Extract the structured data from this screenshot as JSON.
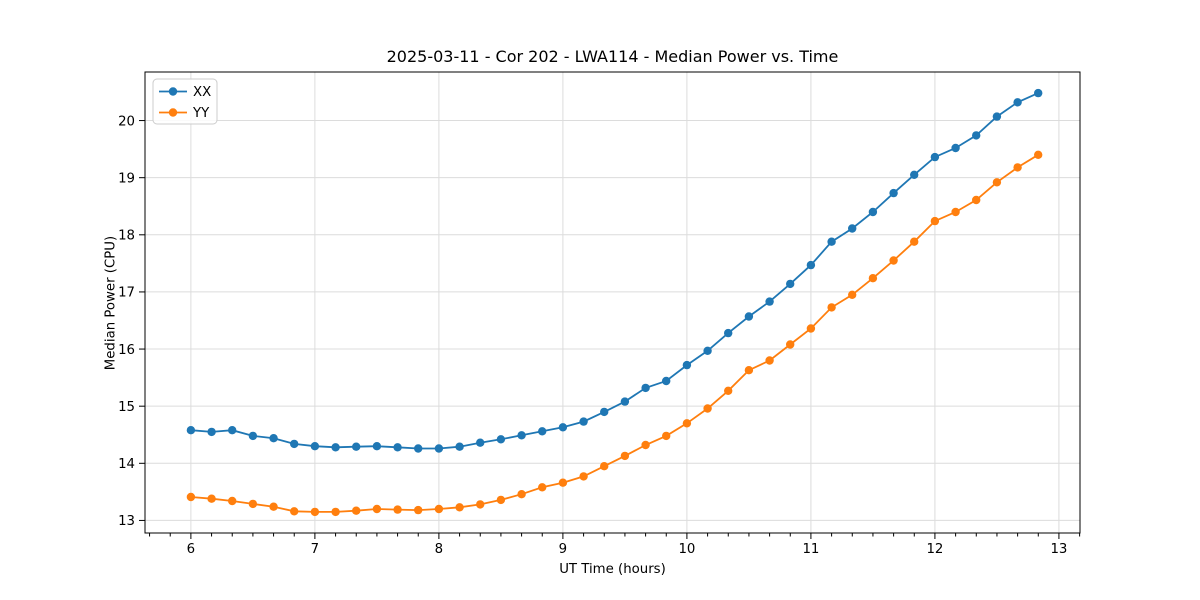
{
  "chart_data": {
    "type": "line",
    "title": "2025-03-11 - Cor 202 - LWA114 - Median Power vs. Time",
    "xlabel": "UT Time (hours)",
    "ylabel": "Median Power (CPU)",
    "xlim": [
      5.63,
      13.17
    ],
    "ylim": [
      12.78,
      20.85
    ],
    "xticks": [
      6,
      7,
      8,
      9,
      10,
      11,
      12,
      13
    ],
    "yticks": [
      13,
      14,
      15,
      16,
      17,
      18,
      19,
      20
    ],
    "x_minor_tick_step": 0.16667,
    "grid": true,
    "grid_color": "#dcdcdc",
    "legend_position": "upper-left",
    "x": [
      6.0,
      6.167,
      6.333,
      6.5,
      6.667,
      6.833,
      7.0,
      7.167,
      7.333,
      7.5,
      7.667,
      7.833,
      8.0,
      8.167,
      8.333,
      8.5,
      8.667,
      8.833,
      9.0,
      9.167,
      9.333,
      9.5,
      9.667,
      9.833,
      10.0,
      10.167,
      10.333,
      10.5,
      10.667,
      10.833,
      11.0,
      11.167,
      11.333,
      11.5,
      11.667,
      11.833,
      12.0,
      12.167,
      12.333,
      12.5,
      12.667,
      12.833
    ],
    "series": [
      {
        "name": "XX",
        "color": "#1f77b4",
        "values": [
          14.58,
          14.55,
          14.58,
          14.48,
          14.44,
          14.34,
          14.3,
          14.28,
          14.29,
          14.3,
          14.28,
          14.26,
          14.26,
          14.29,
          14.36,
          14.42,
          14.49,
          14.56,
          14.63,
          14.73,
          14.9,
          15.08,
          15.32,
          15.44,
          15.72,
          15.97,
          16.28,
          16.57,
          16.83,
          17.14,
          17.47,
          17.88,
          18.11,
          18.4,
          18.73,
          19.05,
          19.36,
          19.52,
          19.74,
          20.07,
          20.32,
          20.48
        ]
      },
      {
        "name": "YY",
        "color": "#ff7f0e",
        "values": [
          13.41,
          13.38,
          13.34,
          13.29,
          13.24,
          13.16,
          13.15,
          13.15,
          13.17,
          13.2,
          13.19,
          13.18,
          13.2,
          13.23,
          13.28,
          13.36,
          13.46,
          13.58,
          13.66,
          13.77,
          13.95,
          14.13,
          14.32,
          14.48,
          14.7,
          14.96,
          15.27,
          15.63,
          15.8,
          16.08,
          16.36,
          16.73,
          16.95,
          17.24,
          17.55,
          17.88,
          18.24,
          18.4,
          18.61,
          18.92,
          19.18,
          19.4
        ]
      }
    ]
  }
}
